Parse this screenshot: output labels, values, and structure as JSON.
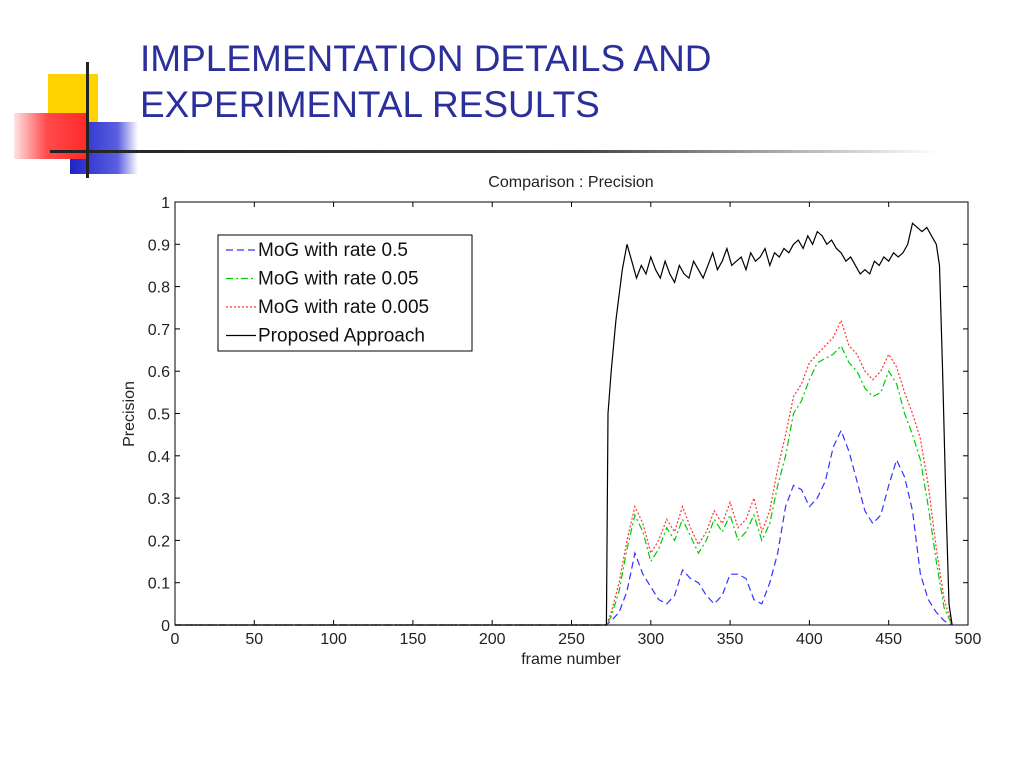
{
  "slide": {
    "title_line1": "IMPLEMENTATION DETAILS AND",
    "title_line2": "EXPERIMENTAL RESULTS"
  },
  "colors": {
    "title": "#2b2f9a",
    "deco_yellow": "#ffd200",
    "deco_red": "#ff3b3b",
    "deco_blue": "#2b2fd0",
    "series_mog_05": "#3333ff",
    "series_mog_005": "#00cc00",
    "series_mog_0005": "#ff3333",
    "series_proposed": "#000000"
  },
  "chart_data": {
    "type": "line",
    "title": "Comparison : Precision",
    "xlabel": "frame number",
    "ylabel": "Precision",
    "xlim": [
      0,
      500
    ],
    "ylim": [
      0,
      1
    ],
    "xticks": [
      0,
      50,
      100,
      150,
      200,
      250,
      300,
      350,
      400,
      450,
      500
    ],
    "yticks": [
      0,
      0.1,
      0.2,
      0.3,
      0.4,
      0.5,
      0.6,
      0.7,
      0.8,
      0.9,
      1
    ],
    "grid": false,
    "legend": "top-left",
    "series": [
      {
        "name": "MoG with rate 0.5",
        "style": "dashed",
        "x": [
          0,
          272,
          275,
          280,
          285,
          290,
          295,
          300,
          305,
          310,
          315,
          320,
          325,
          330,
          335,
          340,
          345,
          350,
          355,
          360,
          365,
          370,
          375,
          380,
          385,
          390,
          395,
          400,
          405,
          410,
          415,
          420,
          425,
          430,
          435,
          440,
          445,
          450,
          455,
          460,
          465,
          470,
          475,
          480,
          485,
          490
        ],
        "y": [
          0,
          0,
          0.01,
          0.03,
          0.08,
          0.17,
          0.12,
          0.09,
          0.06,
          0.05,
          0.07,
          0.13,
          0.11,
          0.1,
          0.07,
          0.05,
          0.07,
          0.12,
          0.12,
          0.11,
          0.06,
          0.05,
          0.1,
          0.17,
          0.28,
          0.33,
          0.32,
          0.28,
          0.3,
          0.34,
          0.42,
          0.46,
          0.41,
          0.34,
          0.27,
          0.24,
          0.26,
          0.33,
          0.39,
          0.35,
          0.27,
          0.12,
          0.06,
          0.03,
          0.01,
          0
        ]
      },
      {
        "name": "MoG with rate 0.05",
        "style": "dashdot",
        "x": [
          0,
          272,
          275,
          280,
          285,
          290,
          295,
          300,
          305,
          310,
          315,
          320,
          325,
          330,
          335,
          340,
          345,
          350,
          355,
          360,
          365,
          370,
          375,
          380,
          385,
          390,
          395,
          400,
          405,
          410,
          415,
          420,
          425,
          430,
          435,
          440,
          445,
          450,
          455,
          460,
          465,
          470,
          475,
          480,
          485,
          490
        ],
        "y": [
          0,
          0,
          0.02,
          0.08,
          0.18,
          0.26,
          0.22,
          0.15,
          0.18,
          0.23,
          0.2,
          0.25,
          0.21,
          0.17,
          0.2,
          0.25,
          0.22,
          0.26,
          0.2,
          0.22,
          0.26,
          0.2,
          0.24,
          0.33,
          0.4,
          0.5,
          0.53,
          0.58,
          0.62,
          0.63,
          0.64,
          0.66,
          0.62,
          0.6,
          0.56,
          0.54,
          0.55,
          0.6,
          0.57,
          0.5,
          0.45,
          0.39,
          0.28,
          0.15,
          0.04,
          0
        ]
      },
      {
        "name": "MoG with rate 0.005",
        "style": "dotted",
        "x": [
          0,
          272,
          275,
          280,
          285,
          290,
          295,
          300,
          305,
          310,
          315,
          320,
          325,
          330,
          335,
          340,
          345,
          350,
          355,
          360,
          365,
          370,
          375,
          380,
          385,
          390,
          395,
          400,
          405,
          410,
          415,
          420,
          425,
          430,
          435,
          440,
          445,
          450,
          455,
          460,
          465,
          470,
          475,
          480,
          485,
          490
        ],
        "y": [
          0,
          0,
          0.03,
          0.1,
          0.2,
          0.28,
          0.24,
          0.17,
          0.2,
          0.25,
          0.22,
          0.28,
          0.23,
          0.19,
          0.22,
          0.27,
          0.24,
          0.29,
          0.23,
          0.25,
          0.3,
          0.22,
          0.27,
          0.37,
          0.45,
          0.54,
          0.57,
          0.62,
          0.64,
          0.66,
          0.68,
          0.72,
          0.66,
          0.64,
          0.6,
          0.58,
          0.6,
          0.64,
          0.61,
          0.55,
          0.5,
          0.44,
          0.33,
          0.18,
          0.06,
          0
        ]
      },
      {
        "name": "Proposed Approach",
        "style": "solid",
        "x": [
          0,
          272,
          273,
          275,
          278,
          282,
          285,
          288,
          291,
          294,
          297,
          300,
          303,
          306,
          309,
          312,
          315,
          318,
          321,
          324,
          327,
          330,
          333,
          336,
          339,
          342,
          345,
          348,
          351,
          354,
          357,
          360,
          363,
          366,
          369,
          372,
          375,
          378,
          381,
          384,
          387,
          390,
          393,
          396,
          399,
          402,
          405,
          408,
          411,
          414,
          417,
          420,
          423,
          426,
          429,
          432,
          435,
          438,
          441,
          444,
          447,
          450,
          453,
          456,
          459,
          462,
          465,
          468,
          471,
          474,
          477,
          480,
          482,
          484,
          486,
          488,
          490
        ],
        "y": [
          0,
          0,
          0.5,
          0.6,
          0.72,
          0.84,
          0.9,
          0.86,
          0.82,
          0.85,
          0.83,
          0.87,
          0.84,
          0.82,
          0.86,
          0.83,
          0.81,
          0.85,
          0.83,
          0.82,
          0.86,
          0.84,
          0.82,
          0.85,
          0.88,
          0.84,
          0.86,
          0.89,
          0.85,
          0.86,
          0.87,
          0.84,
          0.88,
          0.86,
          0.87,
          0.89,
          0.85,
          0.88,
          0.87,
          0.89,
          0.88,
          0.9,
          0.91,
          0.89,
          0.92,
          0.9,
          0.93,
          0.92,
          0.9,
          0.91,
          0.89,
          0.88,
          0.86,
          0.87,
          0.85,
          0.83,
          0.84,
          0.83,
          0.86,
          0.85,
          0.87,
          0.86,
          0.88,
          0.87,
          0.88,
          0.9,
          0.95,
          0.94,
          0.93,
          0.94,
          0.92,
          0.9,
          0.85,
          0.6,
          0.3,
          0.05,
          0
        ]
      }
    ]
  }
}
